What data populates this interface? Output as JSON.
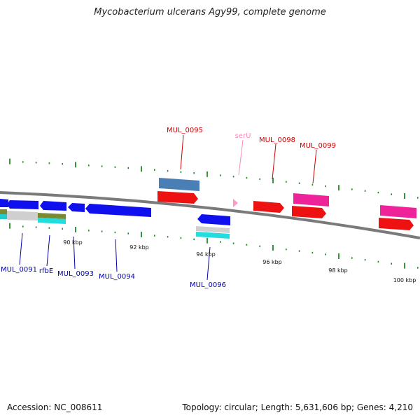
{
  "title": "Mycobacterium ulcerans Agy99, complete genome",
  "footer": {
    "accession": "Accession: NC_008611",
    "summary": "Topology: circular; Length: 5,631,606 bp; Genes: 4,210"
  },
  "colors": {
    "backbone": "#808080",
    "forward_cds": "#ff0000",
    "reverse_cds": "#0000ff",
    "trna": "#ff99cc",
    "pink_feature": "#ff3399",
    "steelblue_feature": "#4477aa",
    "cyan_feature": "#00dddd",
    "grey_feature": "#cccccc",
    "olive_feature": "#888833",
    "tick_green": "#228822"
  },
  "scale_ticks": [
    "90 kbp",
    "92 kbp",
    "94 kbp",
    "96 kbp",
    "98 kbp",
    "100 kbp"
  ],
  "labels_top": [
    {
      "text": "MUL_0095",
      "color": "#cc0000"
    },
    {
      "text": "serU",
      "color": "#ff88bb"
    },
    {
      "text": "MUL_0098",
      "color": "#cc0000"
    },
    {
      "text": "MUL_0099",
      "color": "#cc0000"
    }
  ],
  "labels_bottom": [
    {
      "text": "MUL_0091",
      "color": "#0000aa"
    },
    {
      "text": "rfbE",
      "color": "#0000aa"
    },
    {
      "text": "MUL_0093",
      "color": "#0000aa"
    },
    {
      "text": "MUL_0094",
      "color": "#0000aa"
    },
    {
      "text": "MUL_0096",
      "color": "#0000aa"
    }
  ]
}
